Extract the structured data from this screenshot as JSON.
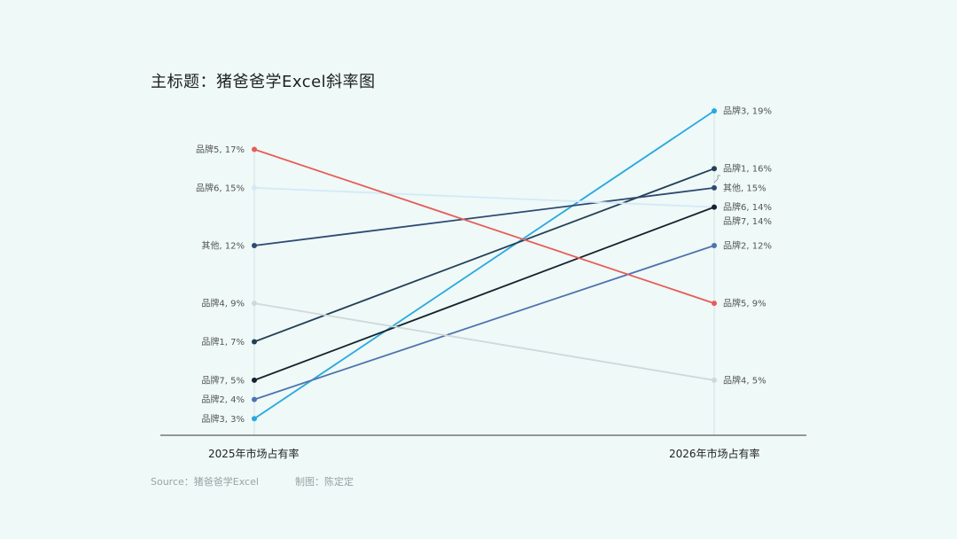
{
  "title": "主标题：猪爸爸学Excel斜率图",
  "footer": {
    "source": "Source：猪爸爸学Excel",
    "credit": "制图：陈定定"
  },
  "chart_data": {
    "type": "line",
    "title": "主标题：猪爸爸学Excel斜率图",
    "categories": [
      "2025年市场占有率",
      "2026年市场占有率"
    ],
    "unit": "%",
    "series": [
      {
        "name": "品牌3",
        "values": [
          3,
          19
        ],
        "color": "#29A8E0"
      },
      {
        "name": "品牌1",
        "values": [
          7,
          16
        ],
        "color": "#243F55"
      },
      {
        "name": "其他",
        "values": [
          12,
          15
        ],
        "color": "#2E4A72"
      },
      {
        "name": "品牌6",
        "values": [
          15,
          14
        ],
        "color": "#D3EAF6"
      },
      {
        "name": "品牌7",
        "values": [
          5,
          14
        ],
        "color": "#15212C"
      },
      {
        "name": "品牌2",
        "values": [
          4,
          12
        ],
        "color": "#4F73AE"
      },
      {
        "name": "品牌5",
        "values": [
          17,
          9
        ],
        "color": "#E85D58"
      },
      {
        "name": "品牌4",
        "values": [
          9,
          5
        ],
        "color": "#CFD8DA"
      }
    ],
    "labels_left": [
      {
        "text": "品牌5, 17%",
        "series": "品牌5"
      },
      {
        "text": "品牌6, 15%",
        "series": "品牌6"
      },
      {
        "text": "其他, 12%",
        "series": "其他"
      },
      {
        "text": "品牌4, 9%",
        "series": "品牌4"
      },
      {
        "text": "品牌1, 7%",
        "series": "品牌1"
      },
      {
        "text": "品牌7, 5%",
        "series": "品牌7"
      },
      {
        "text": "品牌2, 4%",
        "series": "品牌2"
      },
      {
        "text": "品牌3, 3%",
        "series": "品牌3"
      }
    ],
    "labels_right": [
      {
        "text": "品牌3, 19%",
        "series": "品牌3"
      },
      {
        "text": "品牌1, 16%",
        "series": "品牌1"
      },
      {
        "text": "其他, 15%",
        "series": "其他"
      },
      {
        "text": "品牌6, 14%",
        "series": "品牌6"
      },
      {
        "text": "品牌7, 14%",
        "series": "品牌7"
      },
      {
        "text": "品牌2, 12%",
        "series": "品牌2"
      },
      {
        "text": "品牌5, 9%",
        "series": "品牌5"
      },
      {
        "text": "品牌4, 5%",
        "series": "品牌4"
      }
    ],
    "grid": false,
    "legend": "none"
  }
}
